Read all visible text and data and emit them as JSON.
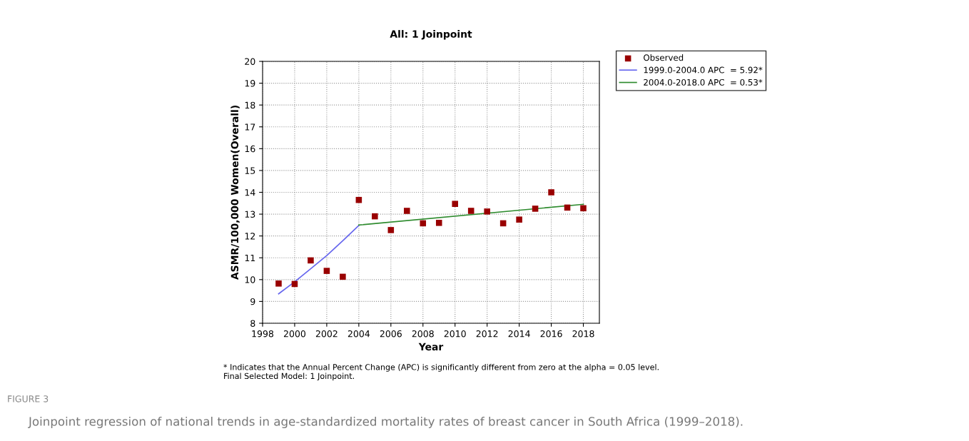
{
  "chart_data": {
    "type": "scatter",
    "title": "All: 1 Joinpoint",
    "xlabel": "Year",
    "ylabel": "ASMR/100,000 Women(Overall)",
    "xlim": [
      1998,
      2019
    ],
    "xticks": [
      1998,
      2000,
      2002,
      2004,
      2006,
      2008,
      2010,
      2012,
      2014,
      2016,
      2018
    ],
    "ylim": [
      8,
      20
    ],
    "yticks": [
      8,
      9,
      10,
      11,
      12,
      13,
      14,
      15,
      16,
      17,
      18,
      19,
      20
    ],
    "grid": true,
    "legend": "top right",
    "series": [
      {
        "name": "Observed",
        "marker": "square",
        "color": "#990000",
        "x": [
          1999,
          2000,
          2001,
          2002,
          2003,
          2004,
          2005,
          2006,
          2007,
          2008,
          2009,
          2010,
          2011,
          2012,
          2013,
          2014,
          2015,
          2016,
          2017,
          2018
        ],
        "values": [
          9.82,
          9.8,
          10.88,
          10.4,
          10.13,
          13.65,
          12.9,
          12.27,
          13.15,
          12.58,
          12.6,
          13.47,
          13.15,
          13.12,
          12.58,
          12.75,
          13.25,
          14.0,
          13.3,
          13.27
        ]
      },
      {
        "name": "1999.0-2004.0 APC  = 5.92*",
        "type": "line",
        "marker": "none",
        "line_style": "solid",
        "color": "#6666ee",
        "x": [
          1999,
          2000,
          2001,
          2002,
          2003,
          2004
        ],
        "values": [
          9.35,
          9.9,
          10.5,
          11.1,
          11.78,
          12.48
        ]
      },
      {
        "name": "2004.0-2018.0 APC  = 0.53*",
        "type": "line",
        "marker": "none",
        "line_style": "solid",
        "color": "#2e8b2e",
        "x": [
          2004,
          2018
        ],
        "values": [
          12.5,
          13.45
        ]
      }
    ],
    "annotations": [
      "* Indicates that the Annual Percent Change (APC) is significantly different from zero at the alpha = 0.05 level.\nFinal Selected Model: 1 Joinpoint.",
      "FIGURE 3",
      "Joinpoint regression of national trends in age-standardized mortality rates of breast cancer in South Africa (1999–2018)."
    ]
  }
}
